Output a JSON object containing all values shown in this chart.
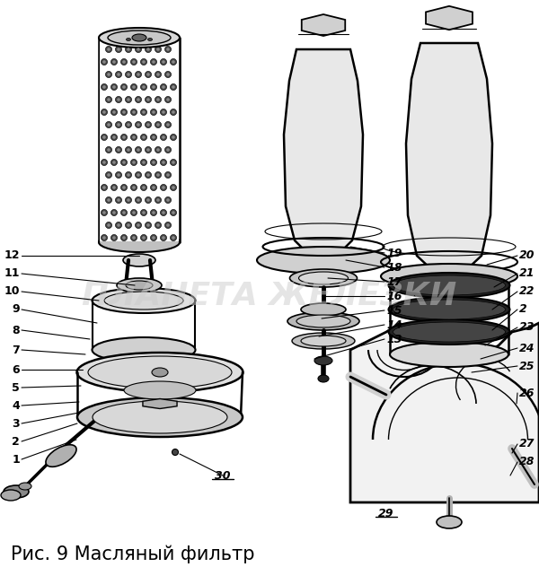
{
  "caption": "Рис. 9 Масляный фильтр",
  "watermark": "ПЛАНЕТА ЖЕЛЕЗКИ",
  "bg_color": "#ffffff",
  "caption_fontsize": 15,
  "watermark_fontsize": 26,
  "watermark_color": "#cccccc",
  "watermark_alpha": 0.5,
  "fig_width": 6.0,
  "fig_height": 6.32
}
